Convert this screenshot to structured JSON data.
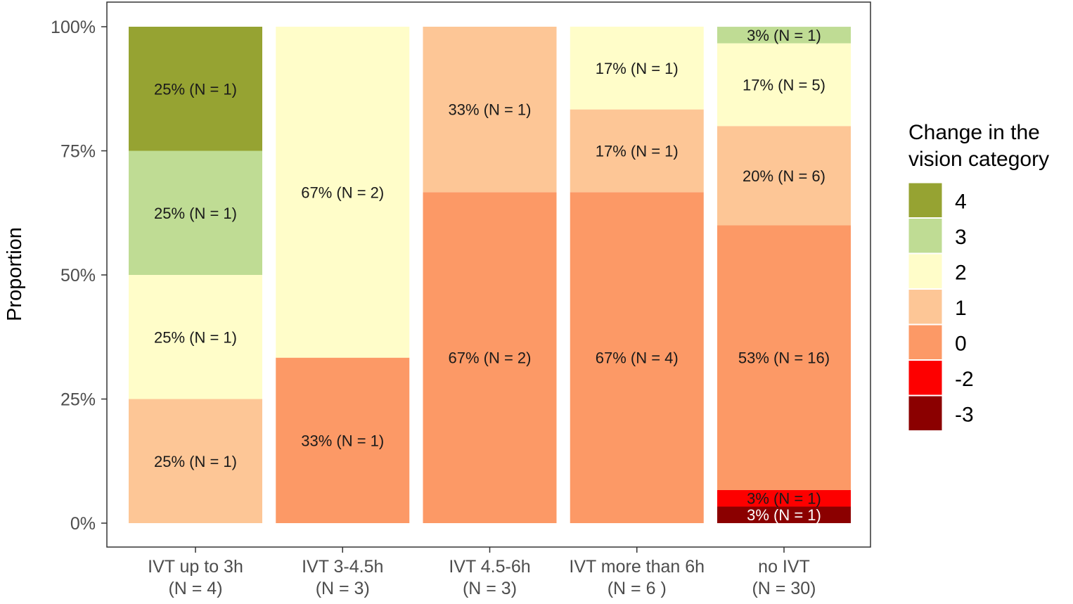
{
  "chart_data": {
    "type": "bar",
    "stacked": true,
    "ylabel": "Proportion",
    "ylim": [
      0,
      1
    ],
    "yticks": [
      "0%",
      "25%",
      "50%",
      "75%",
      "100%"
    ],
    "legend": {
      "title_line1": "Change in the",
      "title_line2": "vision category",
      "placement": "right",
      "entries": [
        {
          "label": "4",
          "color": "#96a332"
        },
        {
          "label": "3",
          "color": "#bfdc94"
        },
        {
          "label": "2",
          "color": "#fffdc9"
        },
        {
          "label": "1",
          "color": "#fdc696"
        },
        {
          "label": "0",
          "color": "#fc9966"
        },
        {
          "label": "-2",
          "color": "#fd0000"
        },
        {
          "label": "-3",
          "color": "#8b0000"
        }
      ]
    },
    "categories": [
      {
        "label_line1": "IVT up to 3h",
        "label_line2": "(N = 4)",
        "segments": [
          {
            "cat": "1",
            "value": 0.25,
            "label": "25% (N = 1)"
          },
          {
            "cat": "2",
            "value": 0.25,
            "label": "25% (N = 1)"
          },
          {
            "cat": "3",
            "value": 0.25,
            "label": "25% (N = 1)"
          },
          {
            "cat": "4",
            "value": 0.25,
            "label": "25% (N = 1)"
          }
        ]
      },
      {
        "label_line1": "IVT 3-4.5h",
        "label_line2": "(N = 3)",
        "segments": [
          {
            "cat": "0",
            "value": 0.3333,
            "label": "33% (N = 1)"
          },
          {
            "cat": "2",
            "value": 0.6667,
            "label": "67% (N = 2)"
          }
        ]
      },
      {
        "label_line1": "IVT 4.5-6h",
        "label_line2": "(N = 3)",
        "segments": [
          {
            "cat": "0",
            "value": 0.6667,
            "label": "67% (N = 2)"
          },
          {
            "cat": "1",
            "value": 0.3333,
            "label": "33% (N = 1)"
          }
        ]
      },
      {
        "label_line1": "IVT more than 6h",
        "label_line2": "(N =  6 )",
        "segments": [
          {
            "cat": "0",
            "value": 0.6667,
            "label": "67% (N = 4)"
          },
          {
            "cat": "1",
            "value": 0.1667,
            "label": "17% (N = 1)"
          },
          {
            "cat": "2",
            "value": 0.1667,
            "label": "17% (N = 1)"
          }
        ]
      },
      {
        "label_line1": "no IVT",
        "label_line2": "(N = 30)",
        "segments": [
          {
            "cat": "-3",
            "value": 0.0333,
            "label": "3% (N = 1)"
          },
          {
            "cat": "-2",
            "value": 0.0333,
            "label": "3% (N = 1)"
          },
          {
            "cat": "0",
            "value": 0.5333,
            "label": "53% (N = 16)"
          },
          {
            "cat": "1",
            "value": 0.2,
            "label": "20% (N = 6)"
          },
          {
            "cat": "2",
            "value": 0.1667,
            "label": "17% (N = 5)"
          },
          {
            "cat": "3",
            "value": 0.0333,
            "label": "3% (N = 1)"
          }
        ]
      }
    ]
  }
}
